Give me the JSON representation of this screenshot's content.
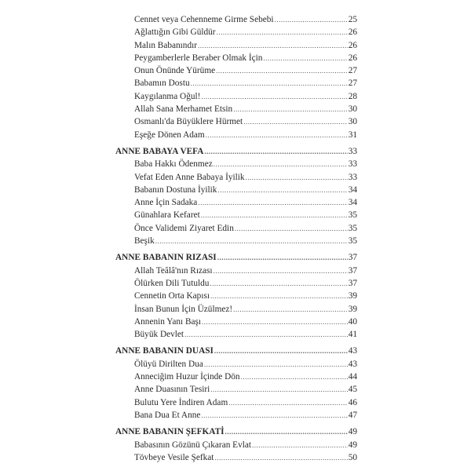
{
  "toc": {
    "lead_items": [
      {
        "title": "Cennet veya Cehenneme Girme Sebebi",
        "page": "25"
      },
      {
        "title": "Ağlattığın Gibi Güldür",
        "page": "26"
      },
      {
        "title": "Malın Babanındır",
        "page": "26"
      },
      {
        "title": "Peygamberlerle Beraber Olmak İçin",
        "page": "26"
      },
      {
        "title": "Onun Önünde Yürüme",
        "page": "27"
      },
      {
        "title": "Babamın Dostu",
        "page": "27"
      },
      {
        "title": "Kaygılanma Oğul!",
        "page": "28"
      },
      {
        "title": "Allah Sana Merhamet Etsin",
        "page": "30"
      },
      {
        "title": "Osmanlı'da Büyüklere Hürmet",
        "page": "30"
      },
      {
        "title": "Eşeğe Dönen Adam",
        "page": "31"
      }
    ],
    "sections": [
      {
        "title": "ANNE BABAYA VEFA",
        "page": "33",
        "items": [
          {
            "title": "Baba Hakkı Ödenmez",
            "page": "33"
          },
          {
            "title": "Vefat Eden Anne Babaya İyilik",
            "page": "33"
          },
          {
            "title": "Babanın Dostuna İyilik",
            "page": "34"
          },
          {
            "title": "Anne İçin Sadaka",
            "page": "34"
          },
          {
            "title": "Günahlara Kefaret",
            "page": "35"
          },
          {
            "title": "Önce Validemi Ziyaret Edin",
            "page": "35"
          },
          {
            "title": "Beşik",
            "page": "35"
          }
        ]
      },
      {
        "title": "ANNE BABANIN RIZASI",
        "page": "37",
        "items": [
          {
            "title": "Allah Teâlâ'nın Rızası",
            "page": "37"
          },
          {
            "title": "Ölürken Dili Tutuldu",
            "page": "37"
          },
          {
            "title": "Cennetin Orta Kapısı",
            "page": "39"
          },
          {
            "title": "İnsan Bunun İçin Üzülmez!",
            "page": "39"
          },
          {
            "title": "Annenin Yanı Başı",
            "page": "40"
          },
          {
            "title": "Büyük Devlet",
            "page": "41"
          }
        ]
      },
      {
        "title": "ANNE BABANIN DUASI",
        "page": "43",
        "items": [
          {
            "title": "Ölüyü Dirilten Dua",
            "page": "43"
          },
          {
            "title": "Anneciğim Huzur İçinde Dön",
            "page": "44"
          },
          {
            "title": "Anne Duasının Tesiri",
            "page": "45"
          },
          {
            "title": "Bulutu Yere İndiren Adam",
            "page": "46"
          },
          {
            "title": "Bana Dua Et Anne",
            "page": "47"
          }
        ]
      },
      {
        "title": "ANNE BABANIN ŞEFKATİ",
        "page": "49",
        "items": [
          {
            "title": "Babasının Gözünü Çıkaran Evlat",
            "page": "49"
          },
          {
            "title": "Tövbeye Vesile Şefkat",
            "page": "50"
          }
        ]
      }
    ]
  }
}
